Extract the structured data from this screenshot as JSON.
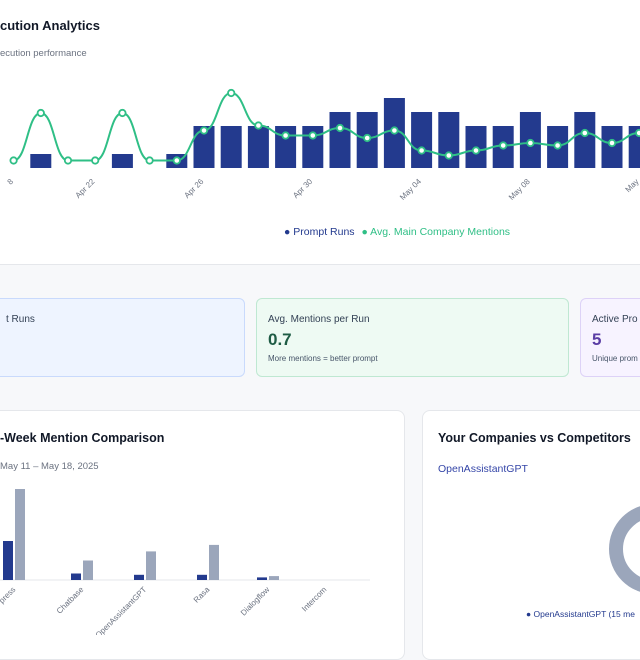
{
  "header": {
    "title": "cution Analytics",
    "subtitle": "ecution performance"
  },
  "colors": {
    "bar": "#233a8e",
    "line": "#2fbf86",
    "grey_bar": "#9ba6bb",
    "blue_card_bg": "#eef4ff",
    "green_card_bg": "#eefaf3",
    "purple_card_bg": "#f7f3ff",
    "purple_value": "#5b3ea5",
    "green_value": "#1f5c45"
  },
  "chart_data": [
    {
      "type": "bar",
      "title": "",
      "x_tick_labels": [
        "8",
        "Apr 22",
        "Apr 26",
        "Apr 30",
        "May 04",
        "May 08",
        "May"
      ],
      "series": [
        {
          "name": "Prompt Runs",
          "values": [
            0,
            1,
            0,
            0,
            1,
            0,
            1,
            3,
            3,
            3,
            3,
            3,
            4,
            4,
            5,
            4,
            4,
            3,
            3,
            4,
            3,
            4,
            3,
            3
          ]
        },
        {
          "name": "Avg. Main Company Mentions",
          "values": [
            0.3,
            2.2,
            0.3,
            0.3,
            2.2,
            0.3,
            0.3,
            1.5,
            3.0,
            1.7,
            1.3,
            1.3,
            1.6,
            1.2,
            1.5,
            0.7,
            0.5,
            0.7,
            0.9,
            1.0,
            0.9,
            1.4,
            1.0,
            1.4
          ]
        }
      ],
      "legend": [
        "Prompt Runs",
        "Avg. Main Company Mentions"
      ]
    },
    {
      "type": "bar",
      "title": "-Week Mention Comparison",
      "subtitle": "May 11 – May 18, 2025",
      "categories": [
        "press",
        "Chatbase",
        "OpenAssistantGPT",
        "Rasa",
        "Dialogflow",
        "Intercom"
      ],
      "series": [
        {
          "values": [
            3,
            0.5,
            0.4,
            0.4,
            0.2,
            0
          ]
        },
        {
          "values": [
            7,
            1.5,
            2.2,
            2.7,
            0.3,
            0
          ]
        }
      ]
    }
  ],
  "legend": {
    "runs": "Prompt Runs",
    "mentions": "Avg. Main Company Mentions"
  },
  "stats": [
    {
      "label": "t Runs",
      "value": "",
      "sub": ""
    },
    {
      "label": "Avg. Mentions per Run",
      "value": "0.7",
      "sub": "More mentions = better prompt"
    },
    {
      "label": "Active Pro",
      "value": "5",
      "sub": "Unique prom"
    }
  ],
  "week": {
    "title": "-Week Mention Comparison",
    "date_range": "May 11 – May 18, 2025"
  },
  "companies": {
    "title": "Your Companies vs Competitors",
    "link": "OpenAssistantGPT",
    "legend": "OpenAssistantGPT (15 me"
  }
}
